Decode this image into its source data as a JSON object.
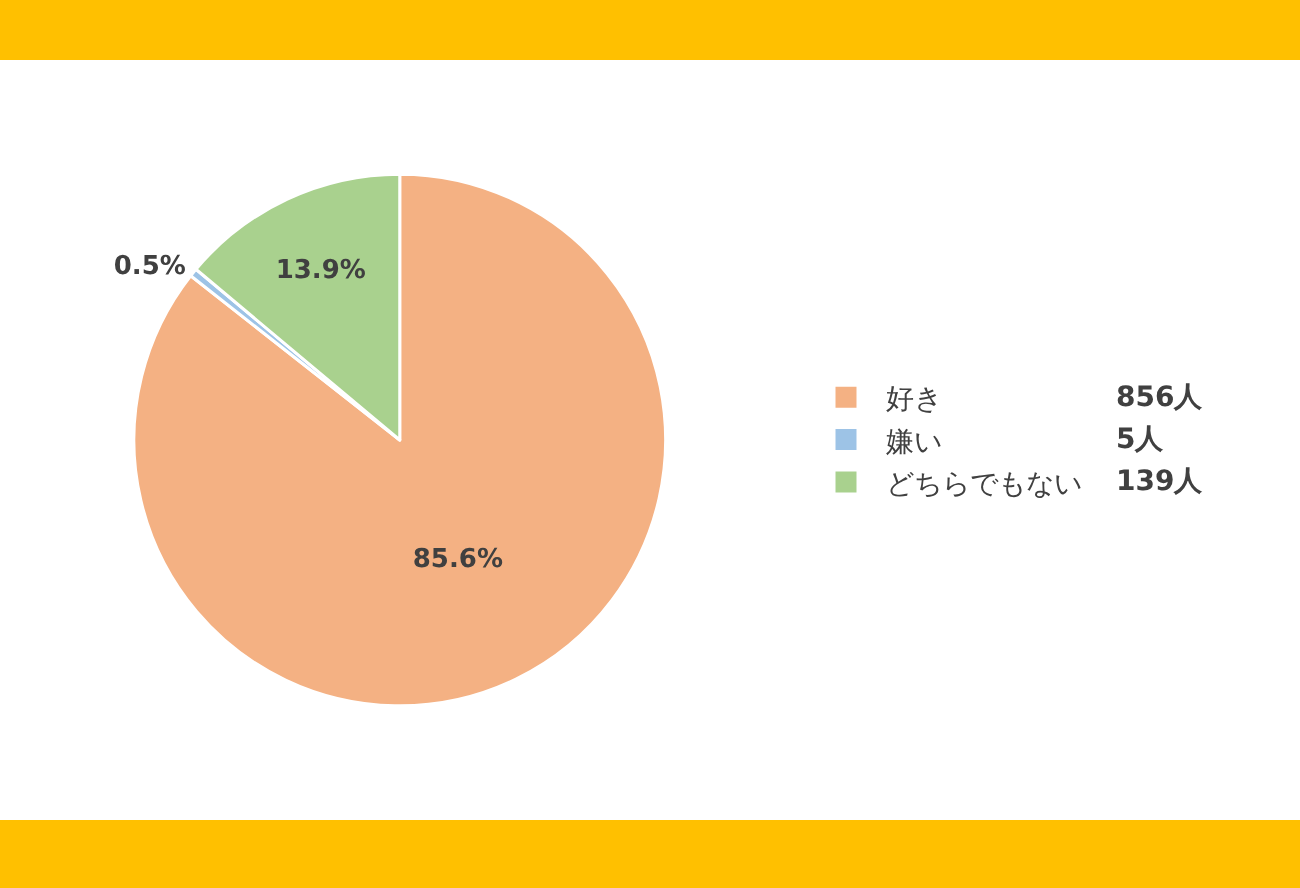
{
  "chart_data": {
    "type": "pie",
    "categories": [
      "好き",
      "嫌い",
      "どちらでもない"
    ],
    "values": [
      85.6,
      0.5,
      13.9
    ],
    "value_labels": [
      "85.6%",
      "0.5%",
      "13.9%"
    ],
    "colors": [
      "#f4b183",
      "#9dc3e6",
      "#a9d18e"
    ],
    "legend": "right",
    "annotations": [
      "856人",
      "5人",
      "139人"
    ]
  }
}
